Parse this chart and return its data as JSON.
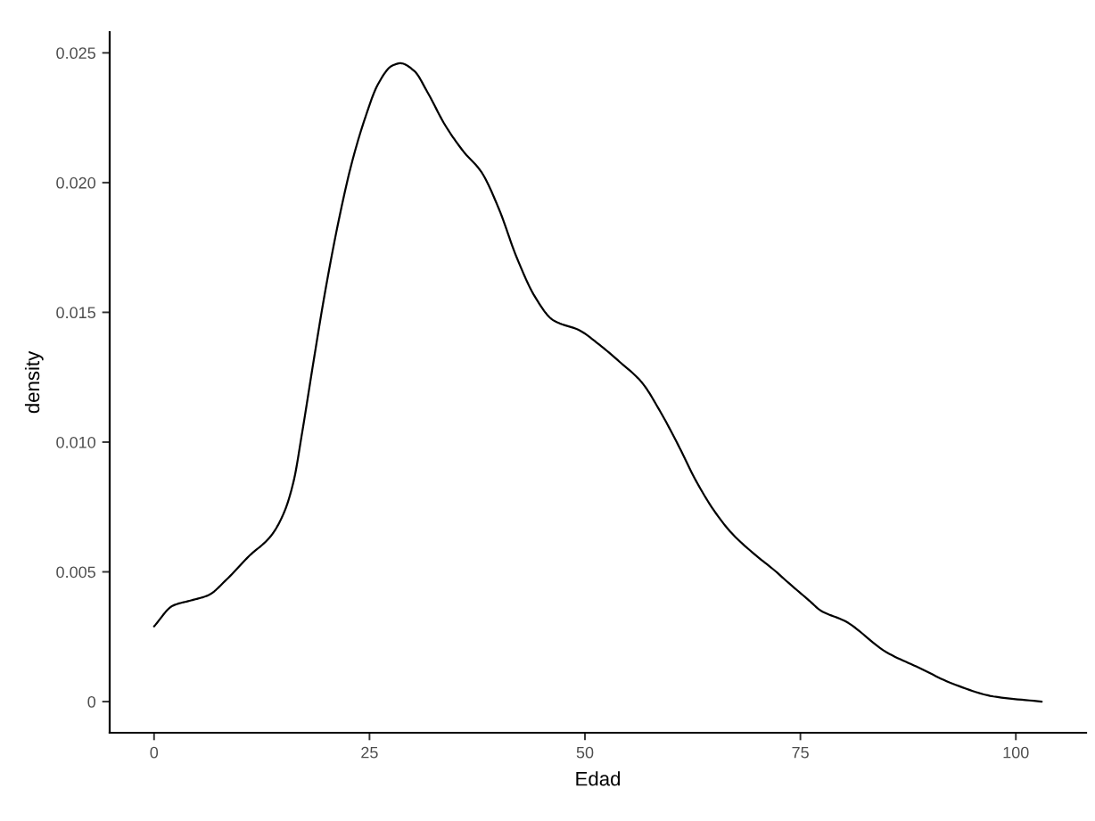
{
  "chart_data": {
    "type": "line",
    "xlabel": "Edad",
    "ylabel": "density",
    "x": [
      0,
      2.2,
      4.3,
      6.3,
      8.4,
      11.0,
      13.6,
      15.1,
      16.2,
      17.2,
      18.5,
      19.8,
      21.4,
      22.9,
      24.5,
      26.0,
      27.6,
      28.6,
      30.2,
      31.7,
      33.8,
      35.9,
      38.0,
      40.0,
      42.1,
      44.2,
      46.3,
      49.4,
      51.5,
      54.0,
      56.6,
      58.7,
      60.8,
      62.9,
      64.9,
      67.0,
      69.6,
      72.2,
      73.2,
      76.0,
      77.4,
      80.2,
      85.0,
      88.8,
      92.6,
      97.4,
      103.0
    ],
    "series": [
      {
        "color": "#000000",
        "values": [
          0.0029,
          0.0037,
          0.0039,
          0.0041,
          0.0047,
          0.0056,
          0.0064,
          0.0073,
          0.0085,
          0.0104,
          0.0131,
          0.0157,
          0.0185,
          0.0207,
          0.0225,
          0.0238,
          0.0245,
          0.0246,
          0.0243,
          0.0235,
          0.0222,
          0.0212,
          0.0204,
          0.019,
          0.0171,
          0.0156,
          0.0147,
          0.0143,
          0.0138,
          0.0131,
          0.0123,
          0.0112,
          0.0099,
          0.0085,
          0.0074,
          0.0065,
          0.0057,
          0.005,
          0.0047,
          0.0039,
          0.0035,
          0.0031,
          0.0019,
          0.0013,
          0.0007,
          0.0002,
          0.0
        ]
      }
    ],
    "xlim": [
      -5.15,
      108.15
    ],
    "ylim": [
      -0.0012,
      0.0258
    ],
    "xticks": [
      0,
      25,
      50,
      75,
      100
    ],
    "yticks": [
      0,
      0.005,
      {
        "value": 0.01,
        "label": "0.010"
      },
      0.015,
      {
        "value": 0.02,
        "label": "0.020"
      },
      0.025
    ],
    "grid": false
  }
}
